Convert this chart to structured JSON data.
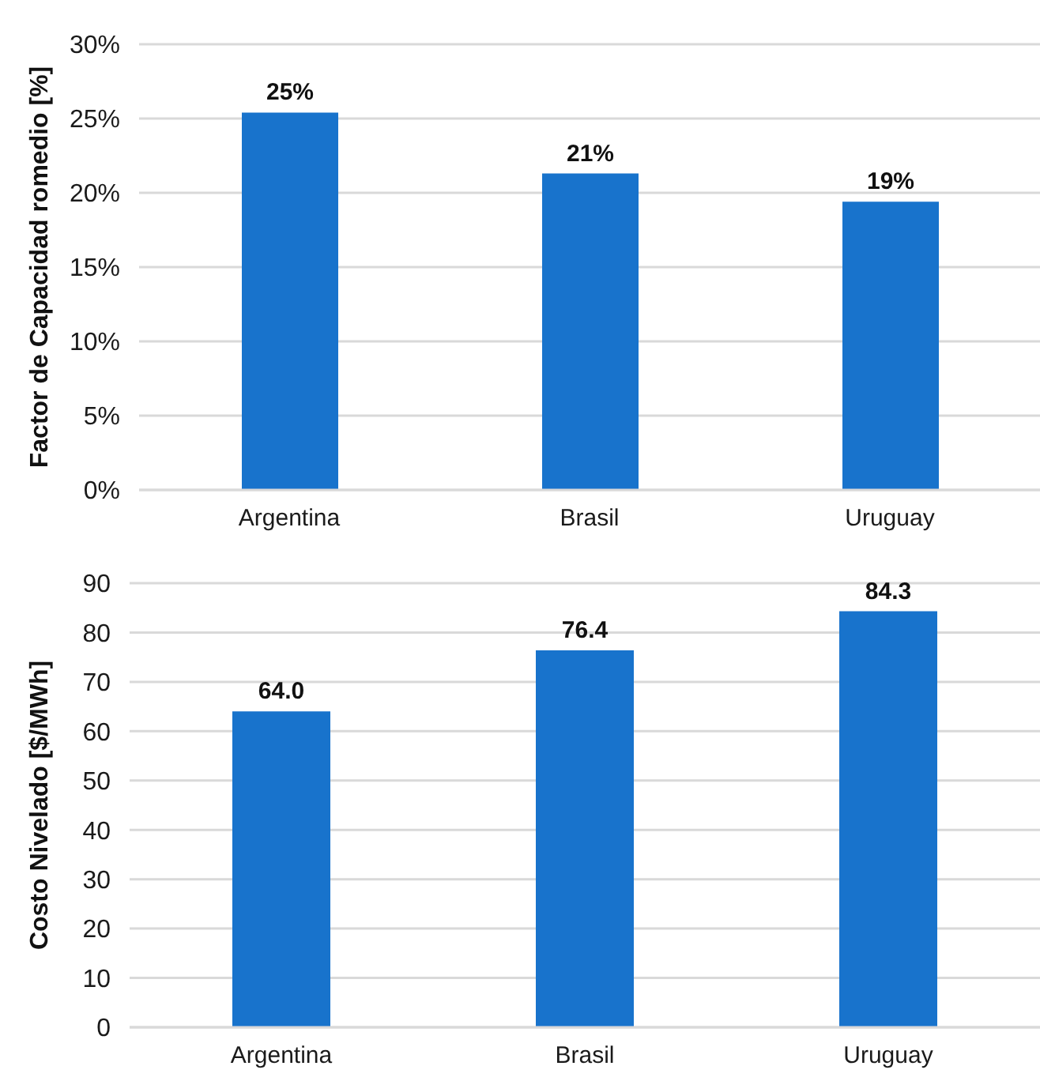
{
  "chart_data": [
    {
      "type": "bar",
      "ylabel": "Factor de Capacidad romedio [%]",
      "categories": [
        "Argentina",
        "Brasil",
        "Uruguay"
      ],
      "values": [
        25.4,
        21.3,
        19.4
      ],
      "value_labels": [
        "25%",
        "21%",
        "19%"
      ],
      "color": "#1873cc",
      "ylim": [
        0,
        30
      ],
      "yticks": [
        {
          "value": 0,
          "label": "0%"
        },
        {
          "value": 5,
          "label": "5%"
        },
        {
          "value": 10,
          "label": "10%"
        },
        {
          "value": 15,
          "label": "15%"
        },
        {
          "value": 20,
          "label": "20%"
        },
        {
          "value": 25,
          "label": "25%"
        },
        {
          "value": 30,
          "label": "30%"
        }
      ],
      "grid": "y"
    },
    {
      "type": "bar",
      "ylabel": "Costo Nivelado [$/MWh]",
      "categories": [
        "Argentina",
        "Brasil",
        "Uruguay"
      ],
      "values": [
        64.0,
        76.4,
        84.3
      ],
      "value_labels": [
        "64.0",
        "76.4",
        "84.3"
      ],
      "color": "#1873cc",
      "ylim": [
        0,
        90
      ],
      "yticks": [
        0,
        10,
        20,
        30,
        40,
        50,
        60,
        70,
        80,
        90
      ],
      "grid": "y"
    }
  ]
}
